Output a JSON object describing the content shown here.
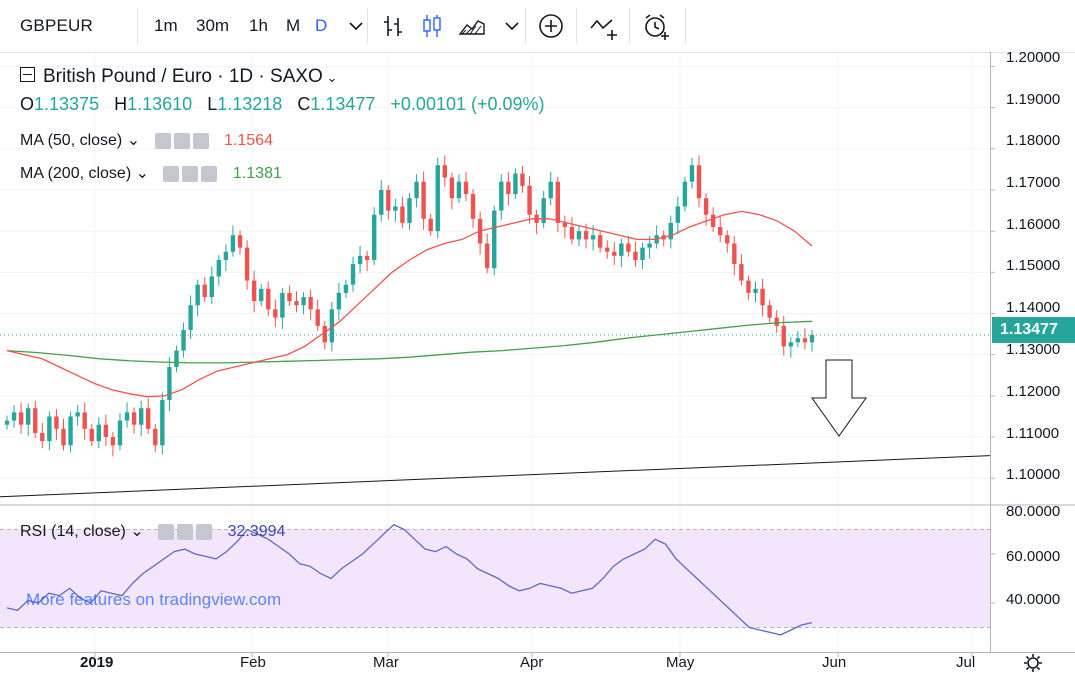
{
  "toolbar": {
    "symbol": "GBPEUR",
    "intervals": [
      "1m",
      "30m",
      "1h",
      "M",
      "D"
    ],
    "active_interval": "D",
    "accent": "#2962ff"
  },
  "header": {
    "title": "British Pound / Euro · 1D · SAXO",
    "ohlc": {
      "o_label": "O",
      "o": "1.13375",
      "h_label": "H",
      "h": "1.13610",
      "l_label": "L",
      "l": "1.13218",
      "c_label": "C",
      "c": "1.13477",
      "change": "+0.00101 (+0.09%)"
    }
  },
  "studies": {
    "ma50": {
      "label": "MA (50, close)",
      "value": "1.1564",
      "color": "#ef5350"
    },
    "ma200": {
      "label": "MA (200, close)",
      "value": "1.1381",
      "color": "#43a047"
    },
    "rsi": {
      "label": "RSI (14, close)",
      "value": "32.3994",
      "color": "#5c6bc0"
    }
  },
  "watermark": "More features on tradingview.com",
  "colors": {
    "up": "#26a69a",
    "down": "#ef5350"
  },
  "chart_data": {
    "type": "candlestick",
    "price_axis": {
      "ticks": [
        "1.20000",
        "1.19000",
        "1.18000",
        "1.17000",
        "1.16000",
        "1.15000",
        "1.14000",
        "1.13000",
        "1.12000",
        "1.11000",
        "1.10000"
      ],
      "range": [
        1.0935,
        1.2035
      ],
      "last_price": "1.13477"
    },
    "rsi_axis": {
      "ticks": [
        "80.0000",
        "60.0000",
        "40.0000"
      ],
      "range": [
        20,
        80
      ],
      "band": [
        30,
        70
      ]
    },
    "time_axis": [
      "2019",
      "Feb",
      "Mar",
      "Apr",
      "May",
      "Jun",
      "Jul"
    ],
    "closes": [
      1.114,
      1.116,
      1.113,
      1.117,
      1.111,
      1.109,
      1.115,
      1.112,
      1.108,
      1.115,
      1.116,
      1.112,
      1.109,
      1.113,
      1.11,
      1.108,
      1.114,
      1.116,
      1.113,
      1.117,
      1.112,
      1.108,
      1.119,
      1.127,
      1.131,
      1.136,
      1.142,
      1.147,
      1.144,
      1.149,
      1.153,
      1.155,
      1.159,
      1.156,
      1.148,
      1.143,
      1.146,
      1.141,
      1.139,
      1.145,
      1.143,
      1.142,
      1.144,
      1.141,
      1.137,
      1.133,
      1.141,
      1.145,
      1.147,
      1.152,
      1.154,
      1.153,
      1.164,
      1.17,
      1.165,
      1.166,
      1.162,
      1.168,
      1.172,
      1.163,
      1.16,
      1.176,
      1.173,
      1.168,
      1.172,
      1.169,
      1.163,
      1.157,
      1.151,
      1.165,
      1.172,
      1.169,
      1.174,
      1.171,
      1.164,
      1.162,
      1.168,
      1.172,
      1.162,
      1.161,
      1.158,
      1.16,
      1.158,
      1.159,
      1.156,
      1.155,
      1.154,
      1.157,
      1.155,
      1.153,
      1.156,
      1.157,
      1.159,
      1.158,
      1.162,
      1.166,
      1.172,
      1.176,
      1.168,
      1.164,
      1.161,
      1.159,
      1.157,
      1.152,
      1.148,
      1.145,
      1.146,
      1.142,
      1.139,
      1.137,
      1.132,
      1.133,
      1.134,
      1.133,
      1.1348
    ],
    "ma50": [
      1.131,
      1.13,
      1.129,
      1.127,
      1.125,
      1.123,
      1.1215,
      1.1205,
      1.1198,
      1.12,
      1.1215,
      1.124,
      1.126,
      1.127,
      1.128,
      1.129,
      1.13,
      1.132,
      1.135,
      1.138,
      1.142,
      1.146,
      1.15,
      1.153,
      1.1555,
      1.157,
      1.158,
      1.16,
      1.161,
      1.162,
      1.163,
      1.163,
      1.162,
      1.161,
      1.16,
      1.159,
      1.158,
      1.158,
      1.159,
      1.161,
      1.1625,
      1.164,
      1.1648,
      1.164,
      1.1625,
      1.16,
      1.1564
    ],
    "ma200": [
      1.131,
      1.1305,
      1.1298,
      1.129,
      1.1285,
      1.1282,
      1.128,
      1.128,
      1.1282,
      1.1284,
      1.1286,
      1.1288,
      1.129,
      1.1294,
      1.13,
      1.1306,
      1.131,
      1.1316,
      1.1322,
      1.133,
      1.134,
      1.1348,
      1.1356,
      1.1364,
      1.1372,
      1.1378,
      1.1381
    ],
    "trendline": [
      [
        0,
        1.0955
      ],
      [
        1,
        1.1055
      ]
    ],
    "rsi": [
      38,
      37,
      41,
      40,
      44,
      43,
      46,
      42,
      40,
      45,
      44,
      43,
      48,
      52,
      55,
      58,
      61,
      62,
      60,
      59,
      58,
      61,
      65,
      70,
      68,
      66,
      63,
      60,
      56,
      55,
      52,
      50,
      54,
      57,
      60,
      64,
      68,
      72,
      70,
      66,
      62,
      61,
      63,
      60,
      58,
      54,
      52,
      50,
      47,
      45,
      46,
      48,
      47,
      46,
      44,
      45,
      46,
      50,
      55,
      58,
      60,
      62,
      66,
      64,
      58,
      54,
      50,
      46,
      42,
      38,
      34,
      30,
      29,
      28,
      27,
      29,
      31,
      32
    ]
  }
}
